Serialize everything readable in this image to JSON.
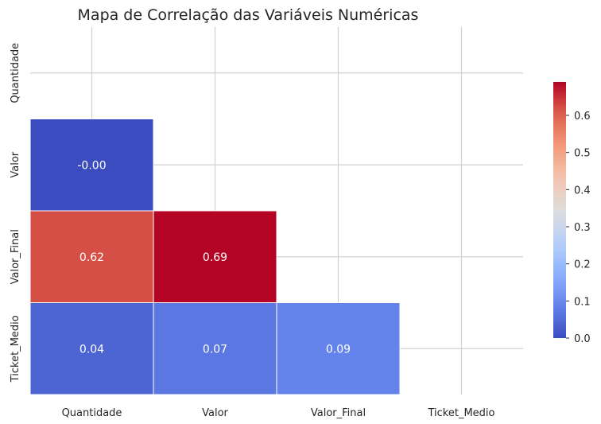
{
  "chart_data": {
    "type": "heatmap",
    "title": "Mapa de Correlação das Variáveis Numéricas",
    "variables": [
      "Quantidade",
      "Valor",
      "Valor_Final",
      "Ticket_Medio"
    ],
    "mask": "upper-triangle-and-diagonal",
    "cells": [
      {
        "row": "Valor",
        "col": "Quantidade",
        "value": -0.001,
        "label": "-0.00"
      },
      {
        "row": "Valor_Final",
        "col": "Quantidade",
        "value": 0.62,
        "label": "0.62"
      },
      {
        "row": "Valor_Final",
        "col": "Valor",
        "value": 0.69,
        "label": "0.69"
      },
      {
        "row": "Ticket_Medio",
        "col": "Quantidade",
        "value": 0.04,
        "label": "0.04"
      },
      {
        "row": "Ticket_Medio",
        "col": "Valor",
        "value": 0.07,
        "label": "0.07"
      },
      {
        "row": "Ticket_Medio",
        "col": "Valor_Final",
        "value": 0.09,
        "label": "0.09"
      }
    ],
    "colormap": "coolwarm",
    "colorbar": {
      "min": 0.0,
      "max": 0.69,
      "ticks": [
        "0.0",
        "0.1",
        "0.2",
        "0.3",
        "0.4",
        "0.5",
        "0.6"
      ]
    },
    "grid": true
  }
}
